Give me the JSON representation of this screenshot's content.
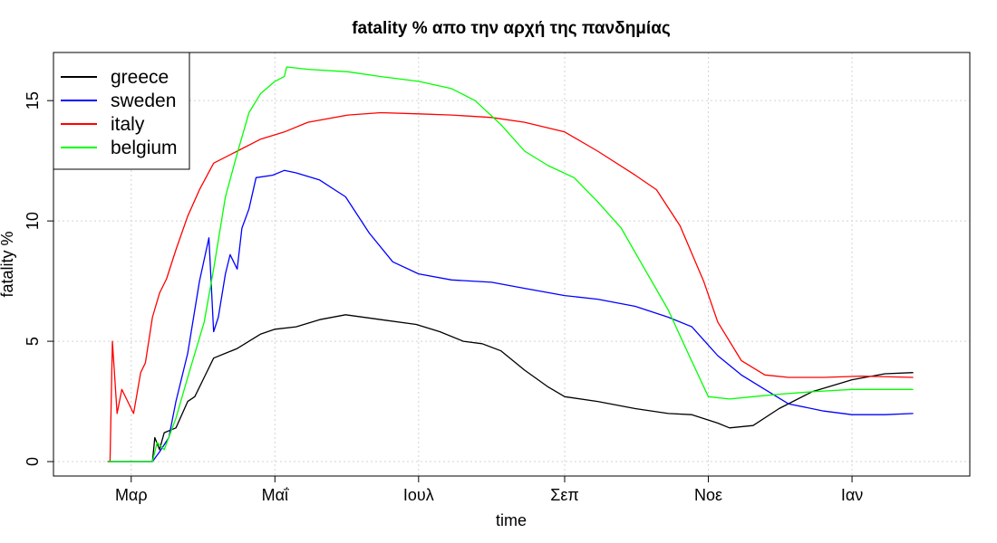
{
  "chart_data": {
    "type": "line",
    "title": "fatality % απο την αρχή της πανδημίας",
    "xlabel": "time",
    "ylabel": "fatality %",
    "xlim": [
      "2020-01-28",
      "2021-02-20"
    ],
    "ylim": [
      -0.6,
      17.0
    ],
    "x_ticks": [
      {
        "date": "2020-03-01",
        "label": "Μαρ"
      },
      {
        "date": "2020-05-01",
        "label": "Μαΐ"
      },
      {
        "date": "2020-07-01",
        "label": "Ιουλ"
      },
      {
        "date": "2020-09-01",
        "label": "Σεπ"
      },
      {
        "date": "2020-11-01",
        "label": "Νοε"
      },
      {
        "date": "2021-01-01",
        "label": "Ιαν"
      }
    ],
    "y_ticks": [
      0,
      5,
      10,
      15
    ],
    "grid": true,
    "legend_position": "top-left",
    "series": [
      {
        "name": "greece",
        "color": "#000000",
        "points": [
          [
            "2020-02-20",
            0
          ],
          [
            "2020-03-10",
            0
          ],
          [
            "2020-03-11",
            1.0
          ],
          [
            "2020-03-13",
            0.5
          ],
          [
            "2020-03-15",
            1.2
          ],
          [
            "2020-03-20",
            1.4
          ],
          [
            "2020-03-25",
            2.5
          ],
          [
            "2020-03-28",
            2.7
          ],
          [
            "2020-04-01",
            3.5
          ],
          [
            "2020-04-05",
            4.3
          ],
          [
            "2020-04-10",
            4.5
          ],
          [
            "2020-04-15",
            4.7
          ],
          [
            "2020-04-20",
            5.0
          ],
          [
            "2020-04-25",
            5.3
          ],
          [
            "2020-05-01",
            5.5
          ],
          [
            "2020-05-10",
            5.6
          ],
          [
            "2020-05-20",
            5.9
          ],
          [
            "2020-05-31",
            6.1
          ],
          [
            "2020-06-15",
            5.9
          ],
          [
            "2020-06-30",
            5.7
          ],
          [
            "2020-07-10",
            5.4
          ],
          [
            "2020-07-20",
            5.0
          ],
          [
            "2020-07-28",
            4.9
          ],
          [
            "2020-08-05",
            4.6
          ],
          [
            "2020-08-15",
            3.8
          ],
          [
            "2020-08-25",
            3.1
          ],
          [
            "2020-09-01",
            2.7
          ],
          [
            "2020-09-15",
            2.5
          ],
          [
            "2020-10-01",
            2.2
          ],
          [
            "2020-10-15",
            2.0
          ],
          [
            "2020-10-25",
            1.95
          ],
          [
            "2020-11-05",
            1.6
          ],
          [
            "2020-11-10",
            1.4
          ],
          [
            "2020-11-20",
            1.5
          ],
          [
            "2020-12-01",
            2.2
          ],
          [
            "2020-12-15",
            2.9
          ],
          [
            "2021-01-01",
            3.4
          ],
          [
            "2021-01-15",
            3.65
          ],
          [
            "2021-01-27",
            3.7
          ]
        ]
      },
      {
        "name": "sweden",
        "color": "#0000ff",
        "points": [
          [
            "2020-02-20",
            0
          ],
          [
            "2020-03-10",
            0
          ],
          [
            "2020-03-13",
            0.4
          ],
          [
            "2020-03-17",
            1.0
          ],
          [
            "2020-03-20",
            2.5
          ],
          [
            "2020-03-25",
            4.5
          ],
          [
            "2020-03-30",
            7.5
          ],
          [
            "2020-04-03",
            9.3
          ],
          [
            "2020-04-05",
            5.4
          ],
          [
            "2020-04-07",
            6.0
          ],
          [
            "2020-04-10",
            7.8
          ],
          [
            "2020-04-12",
            8.6
          ],
          [
            "2020-04-15",
            8.0
          ],
          [
            "2020-04-17",
            9.7
          ],
          [
            "2020-04-20",
            10.5
          ],
          [
            "2020-04-23",
            11.8
          ],
          [
            "2020-04-30",
            11.9
          ],
          [
            "2020-05-05",
            12.1
          ],
          [
            "2020-05-10",
            12.0
          ],
          [
            "2020-05-20",
            11.7
          ],
          [
            "2020-05-31",
            11.0
          ],
          [
            "2020-06-10",
            9.5
          ],
          [
            "2020-06-20",
            8.3
          ],
          [
            "2020-07-01",
            7.8
          ],
          [
            "2020-07-15",
            7.55
          ],
          [
            "2020-08-01",
            7.45
          ],
          [
            "2020-08-15",
            7.2
          ],
          [
            "2020-09-01",
            6.9
          ],
          [
            "2020-09-15",
            6.75
          ],
          [
            "2020-10-01",
            6.45
          ],
          [
            "2020-10-15",
            6.0
          ],
          [
            "2020-10-25",
            5.6
          ],
          [
            "2020-11-05",
            4.4
          ],
          [
            "2020-11-15",
            3.6
          ],
          [
            "2020-11-25",
            3.0
          ],
          [
            "2020-12-05",
            2.4
          ],
          [
            "2020-12-20",
            2.1
          ],
          [
            "2021-01-01",
            1.95
          ],
          [
            "2021-01-15",
            1.95
          ],
          [
            "2021-01-27",
            2.0
          ]
        ]
      },
      {
        "name": "italy",
        "color": "#ff0000",
        "points": [
          [
            "2020-02-20",
            0
          ],
          [
            "2020-02-21",
            0
          ],
          [
            "2020-02-22",
            5.0
          ],
          [
            "2020-02-24",
            2.0
          ],
          [
            "2020-02-26",
            3.0
          ],
          [
            "2020-02-28",
            2.6
          ],
          [
            "2020-03-02",
            2.0
          ],
          [
            "2020-03-05",
            3.7
          ],
          [
            "2020-03-07",
            4.1
          ],
          [
            "2020-03-10",
            6.0
          ],
          [
            "2020-03-13",
            7.0
          ],
          [
            "2020-03-16",
            7.6
          ],
          [
            "2020-03-20",
            8.8
          ],
          [
            "2020-03-25",
            10.2
          ],
          [
            "2020-03-30",
            11.3
          ],
          [
            "2020-04-05",
            12.4
          ],
          [
            "2020-04-15",
            12.9
          ],
          [
            "2020-04-25",
            13.4
          ],
          [
            "2020-05-05",
            13.7
          ],
          [
            "2020-05-15",
            14.1
          ],
          [
            "2020-06-01",
            14.4
          ],
          [
            "2020-06-15",
            14.5
          ],
          [
            "2020-07-01",
            14.45
          ],
          [
            "2020-07-15",
            14.4
          ],
          [
            "2020-08-01",
            14.3
          ],
          [
            "2020-08-15",
            14.1
          ],
          [
            "2020-09-01",
            13.7
          ],
          [
            "2020-09-15",
            12.9
          ],
          [
            "2020-10-01",
            11.9
          ],
          [
            "2020-10-10",
            11.3
          ],
          [
            "2020-10-20",
            9.8
          ],
          [
            "2020-10-30",
            7.5
          ],
          [
            "2020-11-05",
            5.8
          ],
          [
            "2020-11-15",
            4.2
          ],
          [
            "2020-11-25",
            3.6
          ],
          [
            "2020-12-05",
            3.5
          ],
          [
            "2020-12-20",
            3.5
          ],
          [
            "2021-01-05",
            3.55
          ],
          [
            "2021-01-27",
            3.5
          ]
        ]
      },
      {
        "name": "belgium",
        "color": "#00ff00",
        "points": [
          [
            "2020-02-20",
            0
          ],
          [
            "2020-03-10",
            0
          ],
          [
            "2020-03-12",
            0.8
          ],
          [
            "2020-03-15",
            0.5
          ],
          [
            "2020-03-20",
            1.8
          ],
          [
            "2020-03-25",
            3.5
          ],
          [
            "2020-04-01",
            5.8
          ],
          [
            "2020-04-05",
            8.0
          ],
          [
            "2020-04-10",
            11.0
          ],
          [
            "2020-04-15",
            12.8
          ],
          [
            "2020-04-20",
            14.5
          ],
          [
            "2020-04-25",
            15.3
          ],
          [
            "2020-05-01",
            15.8
          ],
          [
            "2020-05-05",
            16.0
          ],
          [
            "2020-05-06",
            16.4
          ],
          [
            "2020-05-15",
            16.3
          ],
          [
            "2020-06-01",
            16.2
          ],
          [
            "2020-06-15",
            16.0
          ],
          [
            "2020-07-01",
            15.8
          ],
          [
            "2020-07-15",
            15.5
          ],
          [
            "2020-07-25",
            15.0
          ],
          [
            "2020-08-05",
            14.0
          ],
          [
            "2020-08-15",
            12.9
          ],
          [
            "2020-08-25",
            12.3
          ],
          [
            "2020-09-05",
            11.8
          ],
          [
            "2020-09-15",
            10.8
          ],
          [
            "2020-09-25",
            9.7
          ],
          [
            "2020-10-05",
            8.0
          ],
          [
            "2020-10-15",
            6.3
          ],
          [
            "2020-10-22",
            4.8
          ],
          [
            "2020-11-01",
            2.7
          ],
          [
            "2020-11-10",
            2.6
          ],
          [
            "2020-11-20",
            2.7
          ],
          [
            "2020-12-01",
            2.8
          ],
          [
            "2020-12-15",
            2.9
          ],
          [
            "2021-01-01",
            3.0
          ],
          [
            "2021-01-27",
            3.0
          ]
        ]
      }
    ]
  }
}
